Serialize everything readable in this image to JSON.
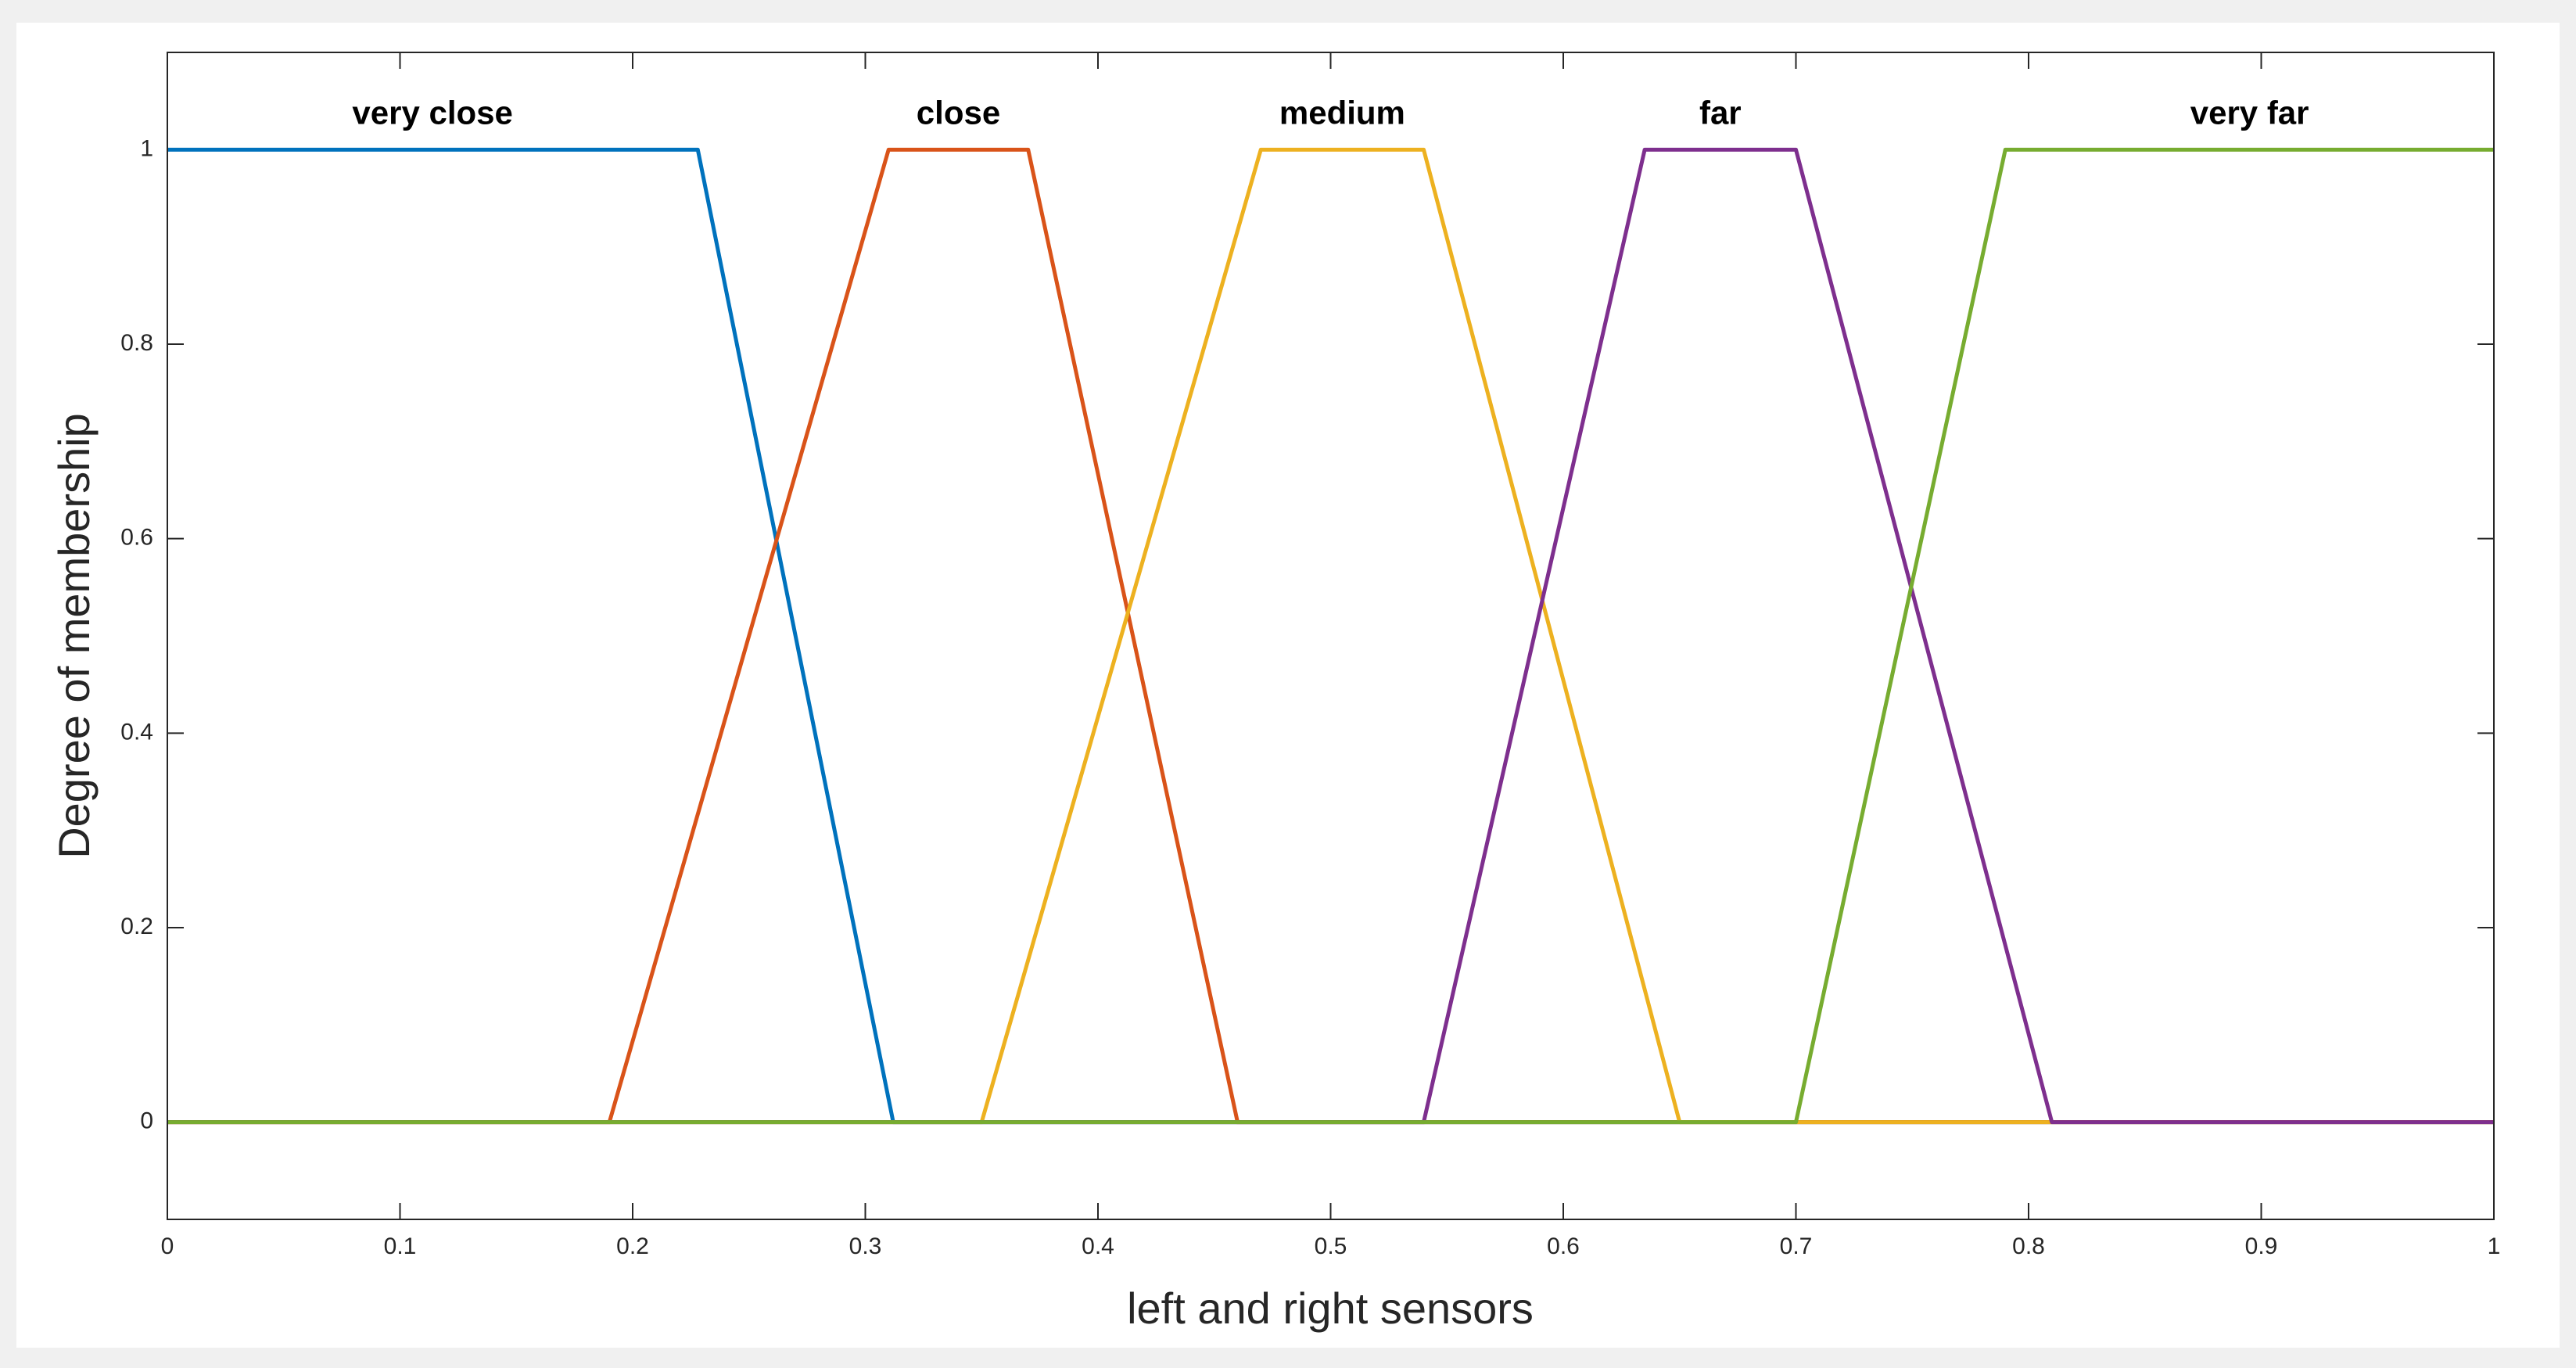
{
  "chart_data": {
    "type": "line",
    "xlabel": "left and right sensors",
    "ylabel": "Degree of membership",
    "xlim": [
      0,
      1
    ],
    "ylim": [
      -0.1,
      1.1
    ],
    "xticks": [
      0,
      0.1,
      0.2,
      0.3,
      0.4,
      0.5,
      0.6,
      0.7,
      0.8,
      0.9,
      1
    ],
    "yticks": [
      0,
      0.2,
      0.4,
      0.6,
      0.8,
      1
    ],
    "grid": false,
    "series": [
      {
        "name": "very close",
        "color": "#0072bd",
        "x": [
          0,
          0.228,
          0.312,
          1
        ],
        "values": [
          1,
          1,
          0,
          0
        ]
      },
      {
        "name": "close",
        "color": "#d95319",
        "x": [
          0,
          0.19,
          0.31,
          0.37,
          0.46,
          1
        ],
        "values": [
          0,
          0,
          1,
          1,
          0,
          0
        ]
      },
      {
        "name": "medium",
        "color": "#edb120",
        "x": [
          0,
          0.35,
          0.47,
          0.54,
          0.65,
          1
        ],
        "values": [
          0,
          0,
          1,
          1,
          0,
          0
        ]
      },
      {
        "name": "far",
        "color": "#7e2f8e",
        "x": [
          0,
          0.54,
          0.635,
          0.7,
          0.81,
          1
        ],
        "values": [
          0,
          0,
          1,
          1,
          0,
          0
        ]
      },
      {
        "name": "very far",
        "color": "#77ac30",
        "x": [
          0,
          0.7,
          0.79,
          1
        ],
        "values": [
          0,
          0,
          1,
          1
        ]
      }
    ]
  }
}
